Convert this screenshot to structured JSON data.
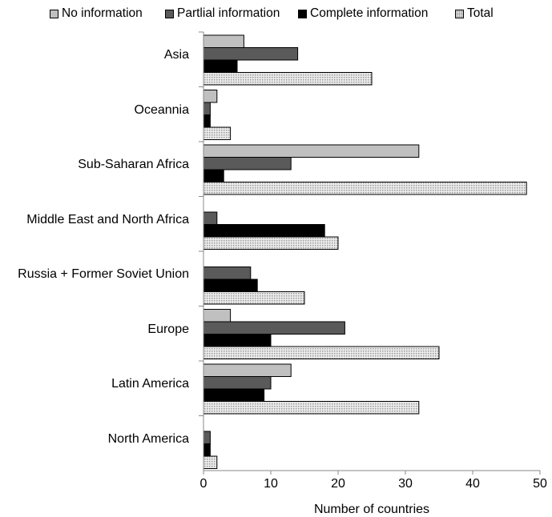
{
  "chart_data": {
    "type": "bar",
    "orientation": "horizontal",
    "xlabel": "Number of countries",
    "xlim": [
      0,
      50
    ],
    "xticks": [
      0,
      10,
      20,
      30,
      40,
      50
    ],
    "legend_position": "top",
    "categories": [
      "Asia",
      "Oceannia",
      "Sub-Saharan Africa",
      "Middle East and North Africa",
      "Russia + Former Soviet Union",
      "Europe",
      "Latin America",
      "North America"
    ],
    "series": [
      {
        "name": "No information",
        "color": "#c0c0c0",
        "values": [
          6,
          2,
          32,
          0,
          0,
          4,
          13,
          0
        ]
      },
      {
        "name": "Partlial information",
        "color": "#5a5a5a",
        "values": [
          14,
          1,
          13,
          2,
          7,
          21,
          10,
          1
        ]
      },
      {
        "name": "Complete information",
        "color": "#000000",
        "values": [
          5,
          1,
          3,
          18,
          8,
          10,
          9,
          1
        ]
      },
      {
        "name": "Total",
        "color": "#d8d8d8",
        "pattern": "dotted",
        "values": [
          25,
          4,
          48,
          20,
          15,
          35,
          32,
          2
        ]
      }
    ]
  }
}
